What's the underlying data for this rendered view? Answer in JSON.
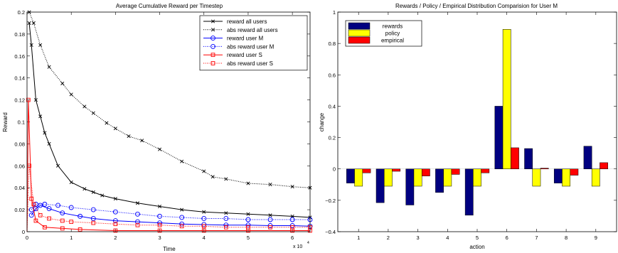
{
  "chart_data": [
    {
      "type": "line",
      "title": "Average Cumulative Reward per Timestep",
      "xlabel": "Time",
      "ylabel": "Reward",
      "x_multiplier_label": "x 10",
      "x_multiplier_exp": "4",
      "xlim": [
        0,
        6.4
      ],
      "ylim": [
        0,
        0.2
      ],
      "x_ticks": [
        0,
        1,
        2,
        3,
        4,
        5,
        6
      ],
      "x_tick_labels": [
        "0",
        "1",
        "2",
        "3",
        "4",
        "5",
        "6"
      ],
      "y_ticks": [
        0,
        0.02,
        0.04,
        0.06,
        0.08,
        0.1,
        0.12,
        0.14,
        0.16,
        0.18,
        0.2
      ],
      "y_tick_labels": [
        "0",
        "0.02",
        "0.04",
        "0.06",
        "0.08",
        "0.1",
        "0.12",
        "0.14",
        "0.16",
        "0.18",
        "0.2"
      ],
      "grid": false,
      "legend_position": "top-right",
      "series": [
        {
          "name": "reward all users",
          "color": "#000000",
          "dash": "solid",
          "marker": "x",
          "x": [
            0.05,
            0.1,
            0.2,
            0.3,
            0.4,
            0.5,
            0.7,
            1.0,
            1.3,
            1.5,
            1.7,
            2.0,
            2.5,
            3.0,
            3.5,
            4.0,
            4.5,
            5.0,
            5.5,
            6.0,
            6.4
          ],
          "y": [
            0.19,
            0.17,
            0.12,
            0.105,
            0.09,
            0.08,
            0.06,
            0.045,
            0.039,
            0.036,
            0.033,
            0.03,
            0.026,
            0.023,
            0.02,
            0.018,
            0.017,
            0.016,
            0.015,
            0.014,
            0.013
          ]
        },
        {
          "name": "abs reward all users",
          "color": "#000000",
          "dash": "dotted",
          "marker": "x",
          "x": [
            0.05,
            0.15,
            0.3,
            0.5,
            0.8,
            1.0,
            1.3,
            1.5,
            1.8,
            2.0,
            2.3,
            2.6,
            3.0,
            3.5,
            4.0,
            4.2,
            4.5,
            5.0,
            5.5,
            6.0,
            6.4
          ],
          "y": [
            0.2,
            0.19,
            0.17,
            0.15,
            0.135,
            0.125,
            0.114,
            0.108,
            0.099,
            0.094,
            0.087,
            0.083,
            0.075,
            0.064,
            0.055,
            0.05,
            0.048,
            0.044,
            0.043,
            0.041,
            0.04
          ]
        },
        {
          "name": "reward user M",
          "color": "#0000ff",
          "dash": "solid",
          "marker": "o",
          "x": [
            0.1,
            0.2,
            0.3,
            0.5,
            0.8,
            1.2,
            1.5,
            2.0,
            2.5,
            3.0,
            3.5,
            4.0,
            4.5,
            5.0,
            5.5,
            6.0,
            6.4
          ],
          "y": [
            0.015,
            0.021,
            0.024,
            0.021,
            0.017,
            0.014,
            0.012,
            0.01,
            0.009,
            0.008,
            0.007,
            0.0065,
            0.006,
            0.006,
            0.0055,
            0.0055,
            0.005
          ]
        },
        {
          "name": "abs reward user M",
          "color": "#0000ff",
          "dash": "dotted",
          "marker": "o",
          "x": [
            0.1,
            0.2,
            0.4,
            0.7,
            1.0,
            1.5,
            2.0,
            2.5,
            3.0,
            3.5,
            4.0,
            4.5,
            5.0,
            5.5,
            6.0,
            6.4
          ],
          "y": [
            0.02,
            0.025,
            0.025,
            0.024,
            0.022,
            0.02,
            0.018,
            0.016,
            0.014,
            0.013,
            0.012,
            0.012,
            0.011,
            0.011,
            0.011,
            0.011
          ]
        },
        {
          "name": "reward user S",
          "color": "#ff0000",
          "dash": "solid",
          "marker": "s",
          "x": [
            0.0,
            0.03,
            0.1,
            0.2,
            0.4,
            0.8,
            1.2,
            2.0,
            3.0,
            4.0,
            5.0,
            6.0,
            6.4
          ],
          "y": [
            0.0,
            0.12,
            0.03,
            0.01,
            0.004,
            0.003,
            0.002,
            0.001,
            0.001,
            0.001,
            0.001,
            0.001,
            0.001
          ]
        },
        {
          "name": "abs reward user S",
          "color": "#ff0000",
          "dash": "dotted",
          "marker": "s",
          "x": [
            0.0,
            0.05,
            0.15,
            0.3,
            0.5,
            0.8,
            1.0,
            1.5,
            2.0,
            2.5,
            3.0,
            3.5,
            4.0,
            4.5,
            5.0,
            5.5,
            6.0,
            6.4
          ],
          "y": [
            0.0,
            0.06,
            0.025,
            0.015,
            0.012,
            0.01,
            0.009,
            0.008,
            0.007,
            0.006,
            0.006,
            0.005,
            0.005,
            0.004,
            0.004,
            0.004,
            0.004,
            0.004
          ]
        }
      ]
    },
    {
      "type": "bar",
      "title": "Rewards / Policy / Empirical Distribution Comparision for User M",
      "xlabel": "action",
      "ylabel": "change",
      "ylim": [
        -0.4,
        1.0
      ],
      "y_ticks": [
        -0.4,
        -0.2,
        0,
        0.2,
        0.4,
        0.6,
        0.8,
        1.0
      ],
      "y_tick_labels": [
        "−0.4",
        "−0.2",
        "0",
        "0.2",
        "0.4",
        "0.6",
        "0.8",
        "1"
      ],
      "grid": false,
      "legend_position": "top-left",
      "categories": [
        "1",
        "2",
        "3",
        "4",
        "5",
        "6",
        "7",
        "8",
        "9"
      ],
      "series": [
        {
          "name": "rewards",
          "color": "#000080",
          "values": [
            -0.09,
            -0.215,
            -0.23,
            -0.15,
            -0.295,
            0.4,
            0.13,
            -0.09,
            0.145
          ]
        },
        {
          "name": "policy",
          "color": "#ffff00",
          "values": [
            -0.11,
            -0.11,
            -0.11,
            -0.11,
            -0.11,
            0.89,
            -0.11,
            -0.11,
            -0.11
          ]
        },
        {
          "name": "empirical",
          "color": "#ff0000",
          "values": [
            -0.025,
            -0.015,
            -0.045,
            -0.035,
            -0.025,
            0.135,
            0.005,
            -0.04,
            0.04
          ]
        }
      ]
    }
  ]
}
